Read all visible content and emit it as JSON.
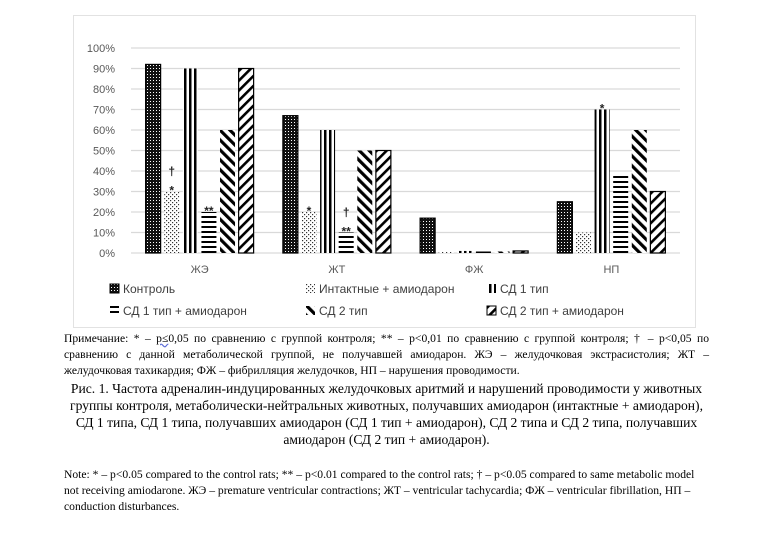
{
  "chart_data": {
    "type": "bar",
    "title": "",
    "xlabel": "",
    "ylabel": "",
    "ylim": [
      0,
      100
    ],
    "y_ticks": [
      "0%",
      "10%",
      "20%",
      "30%",
      "40%",
      "50%",
      "60%",
      "70%",
      "80%",
      "90%",
      "100%"
    ],
    "grid": true,
    "legend_position": "bottom",
    "categories": [
      "ЖЭ",
      "ЖТ",
      "ФЖ",
      "НП"
    ],
    "series": [
      {
        "name": "Контроль",
        "pattern": "dense-dots",
        "values": [
          92,
          67,
          17,
          25
        ]
      },
      {
        "name": "Интактные + амиодарон",
        "pattern": "sparse-dots",
        "values": [
          30,
          20,
          0,
          10
        ]
      },
      {
        "name": "СД 1 тип",
        "pattern": "vertical-lines",
        "values": [
          90,
          60,
          1,
          70
        ]
      },
      {
        "name": "СД 1 тип + амиодарон",
        "pattern": "horizontal-lines",
        "values": [
          20,
          10,
          0,
          38
        ]
      },
      {
        "name": "СД 2 тип",
        "pattern": "backslash-diagonal",
        "values": [
          60,
          50,
          0,
          60
        ]
      },
      {
        "name": "СД 2 тип + амиодарон",
        "pattern": "slash-diagonal-outlined",
        "values": [
          90,
          50,
          1,
          30
        ]
      }
    ],
    "annotations": [
      {
        "category": "ЖЭ",
        "series": "Интактные + амиодарон",
        "text": "*"
      },
      {
        "category": "ЖЭ",
        "series": "Интактные + амиодарон",
        "text": "†"
      },
      {
        "category": "ЖЭ",
        "series": "СД 1 тип + амиодарон",
        "text": "**"
      },
      {
        "category": "ЖТ",
        "series": "Интактные + амиодарон",
        "text": "*"
      },
      {
        "category": "ЖТ",
        "series": "СД 1 тип + амиодарон",
        "text": "**"
      },
      {
        "category": "ЖТ",
        "series": "СД 1 тип + амиодарон",
        "text": "†"
      },
      {
        "category": "НП",
        "series": "СД 1 тип",
        "text": "*"
      }
    ]
  },
  "captions": {
    "note_ru_prefix": "Примечание: * – ",
    "note_ru_p": "p≤",
    "note_ru_rest": "0,05 по сравнению с группой контроля; ** – p<0,01 по сравнению с группой контроля; † – p<0,05 по сравнению с данной метаболической группой, не получавшей амиодарон. ЖЭ – желудочковая экстрасистолия; ЖТ – желудочковая тахикардия; ФЖ – фибрилляция желудочков, НП – нарушения проводимости.",
    "figure_title": "Рис. 1. Частота адреналин-индуцированных желудочковых аритмий и нарушений проводимости у животных группы контроля, метаболически-нейтральных животных, получавших амиодарон (интактные + амиодарон), СД 1 типа, СД 1 типа, получавших амиодарон (СД 1 тип + амиодарон), СД 2 типа и СД 2 типа, получавших амиодарон (СД 2 тип + амиодарон).",
    "note_en": "Note: * – p<0.05 compared to the control rats; ** – p<0.01 compared to the control rats; † – p<0.05 compared to same metabolic model not receiving amiodarone. ЖЭ – premature ventricular contractions; ЖТ – ventricular tachycardia; ФЖ – ventricular fibrillation, НП – conduction disturbances."
  }
}
